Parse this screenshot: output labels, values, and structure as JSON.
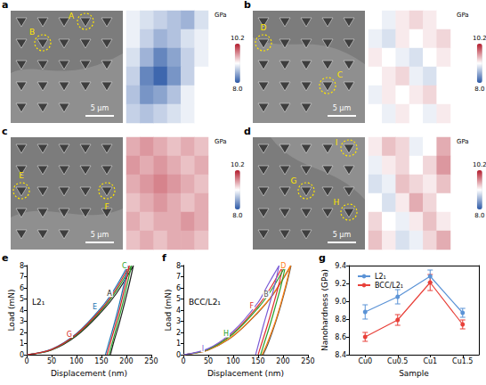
{
  "panels": [
    {
      "letter": "a",
      "scale_bar": "5 μm",
      "markers": [
        "A",
        "B"
      ],
      "map": {
        "type": "heatmap",
        "cells": [
          [
            9.0,
            8.9,
            8.8,
            8.7,
            8.6,
            8.9
          ],
          [
            9.0,
            8.8,
            8.6,
            8.7,
            8.9,
            9.0
          ],
          [
            8.9,
            8.6,
            8.3,
            8.5,
            8.8,
            9.0
          ],
          [
            8.8,
            8.3,
            8.1,
            8.4,
            8.8,
            9.1
          ],
          [
            8.7,
            8.4,
            8.5,
            8.7,
            9.0,
            9.1
          ],
          [
            8.8,
            8.7,
            8.8,
            8.9,
            9.0,
            9.1
          ]
        ],
        "colorbar": {
          "label": "GPa",
          "range": [
            8,
            10.2
          ],
          "ticks": [
            10.2,
            {
              "value": 8,
              "label": "8.0"
            }
          ]
        }
      }
    },
    {
      "letter": "b",
      "scale_bar": "5 μm",
      "markers": [
        "D",
        "C"
      ],
      "map": {
        "type": "heatmap",
        "cells": [
          [
            9.1,
            9.0,
            9.2,
            9.3,
            9.2,
            9.1
          ],
          [
            9.0,
            8.9,
            9.2,
            9.1,
            9.2,
            9.3
          ],
          [
            9.2,
            9.1,
            9.0,
            8.9,
            9.1,
            9.2
          ],
          [
            9.1,
            9.2,
            9.3,
            9.0,
            8.9,
            9.1
          ],
          [
            9.0,
            9.2,
            9.1,
            9.2,
            9.3,
            9.1
          ],
          [
            9.1,
            9.0,
            9.2,
            9.1,
            9.0,
            9.2
          ]
        ],
        "colorbar": {
          "label": "GPa",
          "range": [
            8,
            10.2
          ],
          "ticks": [
            10.2,
            {
              "value": 8,
              "label": "8.0"
            }
          ]
        }
      }
    },
    {
      "letter": "c",
      "scale_bar": "5 μm",
      "markers": [
        "E",
        "F"
      ],
      "map": {
        "type": "heatmap",
        "cells": [
          [
            9.5,
            9.6,
            9.5,
            9.4,
            9.5,
            9.4
          ],
          [
            9.6,
            9.5,
            9.6,
            9.5,
            9.4,
            9.5
          ],
          [
            9.5,
            9.6,
            9.7,
            9.6,
            9.5,
            9.4
          ],
          [
            9.4,
            9.5,
            9.6,
            9.5,
            9.4,
            9.5
          ],
          [
            9.5,
            9.4,
            9.5,
            9.5,
            9.6,
            9.5
          ],
          [
            9.4,
            9.5,
            9.4,
            9.5,
            9.5,
            9.4
          ]
        ],
        "colorbar": {
          "label": "GPa",
          "range": [
            8,
            10.2
          ],
          "ticks": [
            10.2,
            {
              "value": 8,
              "label": "8.0"
            }
          ]
        }
      }
    },
    {
      "letter": "d",
      "scale_bar": "5 μm",
      "markers": [
        "I",
        "G",
        "H"
      ],
      "map": {
        "type": "heatmap",
        "cells": [
          [
            9.2,
            9.4,
            9.3,
            9.0,
            9.1,
            9.5
          ],
          [
            9.0,
            9.2,
            9.3,
            9.1,
            9.3,
            9.6
          ],
          [
            8.9,
            9.0,
            9.4,
            9.3,
            9.2,
            9.4
          ],
          [
            9.1,
            8.9,
            9.2,
            9.5,
            9.3,
            9.1
          ],
          [
            9.3,
            9.1,
            9.0,
            9.2,
            9.4,
            9.2
          ],
          [
            9.4,
            9.2,
            8.9,
            9.0,
            9.3,
            9.5
          ]
        ],
        "colorbar": {
          "label": "GPa",
          "range": [
            8,
            10.2
          ],
          "ticks": [
            10.2,
            {
              "value": 8,
              "label": "8.0"
            }
          ]
        }
      }
    }
  ],
  "chart_data": [
    {
      "letter": "e",
      "type": "line",
      "annotation": "L2₁",
      "x_label": "Displacement (nm)",
      "y_label": "Load (mN)",
      "xlim": [
        0,
        250
      ],
      "xticks": [
        0,
        50,
        100,
        150,
        200,
        250
      ],
      "ylim": [
        0,
        8
      ],
      "yticks": [
        0,
        1,
        2,
        3,
        4,
        5,
        6,
        7,
        8
      ],
      "grid": false,
      "marker": "none",
      "line_style": "solid",
      "series": [
        {
          "name": "A",
          "color": "#222222",
          "x": [
            0,
            50,
            100,
            150,
            180,
            214,
            205,
            195,
            185,
            175,
            168
          ],
          "values": [
            0,
            0.42,
            1.7,
            3.85,
            5.5,
            8,
            6.2,
            4.4,
            2.7,
            1.2,
            0
          ]
        },
        {
          "name": "C",
          "color": "#2ca02c",
          "x": [
            0,
            50,
            100,
            150,
            180,
            210,
            201,
            191,
            181,
            172,
            165
          ],
          "values": [
            0,
            0.45,
            1.78,
            4.0,
            5.75,
            8,
            6.2,
            4.3,
            2.6,
            1.1,
            0
          ]
        },
        {
          "name": "E",
          "color": "#1f77b4",
          "x": [
            0,
            50,
            100,
            150,
            175,
            203,
            194,
            184,
            174,
            165,
            158
          ],
          "values": [
            0,
            0.5,
            1.9,
            4.25,
            5.8,
            8,
            6.1,
            4.2,
            2.5,
            1.1,
            0
          ]
        },
        {
          "name": "G",
          "color": "#d62728",
          "x": [
            0,
            50,
            100,
            150,
            178,
            206,
            197,
            187,
            177,
            168,
            161
          ],
          "values": [
            0,
            0.47,
            1.84,
            4.1,
            5.8,
            8,
            6.1,
            4.2,
            2.5,
            1.1,
            0
          ]
        }
      ]
    },
    {
      "letter": "f",
      "type": "line",
      "annotation": "BCC/L2₁",
      "x_label": "Displacement (nm)",
      "y_label": "Load (mN)",
      "xlim": [
        0,
        250
      ],
      "xticks": [
        0,
        50,
        100,
        150,
        200,
        250
      ],
      "ylim": [
        0,
        8
      ],
      "yticks": [
        0,
        1,
        2,
        3,
        4,
        5,
        6,
        7,
        8
      ],
      "grid": false,
      "marker": "none",
      "line_style": "solid",
      "series": [
        {
          "name": "B",
          "color": "#555555",
          "x": [
            0,
            50,
            100,
            150,
            180,
            216,
            207,
            196,
            185,
            170,
            160
          ],
          "values": [
            0,
            0.42,
            1.68,
            3.8,
            5.4,
            8,
            6.3,
            4.5,
            2.9,
            1.0,
            0
          ]
        },
        {
          "name": "D",
          "color": "#ff7f0e",
          "x": [
            0,
            50,
            100,
            150,
            180,
            215,
            206,
            195,
            184,
            168,
            158
          ],
          "values": [
            0,
            0.43,
            1.7,
            3.85,
            5.45,
            8,
            6.3,
            4.5,
            2.9,
            1.0,
            0
          ]
        },
        {
          "name": "F",
          "color": "#e03030",
          "x": [
            0,
            50,
            100,
            150,
            175,
            200,
            191,
            180,
            169,
            157,
            150
          ],
          "values": [
            0,
            0.5,
            1.95,
            4.4,
            6.0,
            8,
            6.2,
            4.4,
            2.7,
            1.0,
            0
          ]
        },
        {
          "name": "H",
          "color": "#2ca02c",
          "x": [
            0,
            50,
            100,
            150,
            178,
            205,
            196,
            185,
            174,
            162,
            155
          ],
          "values": [
            0,
            0.48,
            1.88,
            4.2,
            5.9,
            8,
            6.2,
            4.4,
            2.7,
            1.0,
            0
          ]
        },
        {
          "name": "I",
          "color": "#7b5cd6",
          "x": [
            0,
            50,
            100,
            150,
            170,
            192,
            183,
            172,
            161,
            151,
            145
          ],
          "values": [
            0,
            0.55,
            2.1,
            4.7,
            6.3,
            8,
            6.2,
            4.4,
            2.7,
            1.0,
            0
          ]
        }
      ]
    },
    {
      "letter": "g",
      "type": "line",
      "x_label": "Sample",
      "y_label": "Nanohardness (GPa)",
      "categories": [
        "Cu0",
        "Cu0.5",
        "Cu1",
        "Cu1.5"
      ],
      "ylim": [
        8.4,
        9.4
      ],
      "yticks": [
        8.4,
        8.6,
        8.8,
        {
          "value": 9,
          "label": "9.0"
        },
        9.2,
        9.4
      ],
      "grid": false,
      "legend": "top-left",
      "marker": "circle",
      "line_style": "solid",
      "series": [
        {
          "name": "L2₁",
          "color": "#5b93d6",
          "values": [
            8.88,
            9.05,
            9.28,
            8.87
          ],
          "errors": [
            0.08,
            0.08,
            0.07,
            0.05
          ]
        },
        {
          "name": "BCC/L2₁",
          "color": "#e8413a",
          "values": [
            8.6,
            8.79,
            9.21,
            8.74
          ],
          "errors": [
            0.05,
            0.06,
            0.09,
            0.05
          ]
        }
      ]
    }
  ]
}
